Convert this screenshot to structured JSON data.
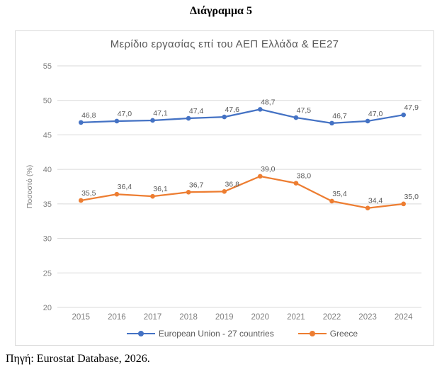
{
  "document": {
    "heading": "Διάγραμμα 5",
    "source": "Πηγή: Eurostat Database, 2026."
  },
  "chart_data": {
    "type": "line",
    "title": "Μερίδιο εργασίας επί του ΑΕΠ Ελλάδα & ΕΕ27",
    "xlabel": "",
    "ylabel": "Ποσοστό (%)",
    "categories": [
      "2015",
      "2016",
      "2017",
      "2018",
      "2019",
      "2020",
      "2021",
      "2022",
      "2023",
      "2024"
    ],
    "series": [
      {
        "name": "European Union - 27 countries",
        "color": "#4472C4",
        "values": [
          46.8,
          47.0,
          47.1,
          47.4,
          47.6,
          48.7,
          47.5,
          46.7,
          47.0,
          47.9
        ]
      },
      {
        "name": "Greece",
        "color": "#ED7D31",
        "values": [
          35.5,
          36.4,
          36.1,
          36.7,
          36.8,
          39.0,
          38.0,
          35.4,
          34.4,
          35.0
        ]
      }
    ],
    "ylim": [
      20,
      55
    ],
    "ytick_step": 5,
    "grid": true,
    "data_labels": true,
    "decimal_separator": ",",
    "legend_position": "bottom",
    "colors": {
      "grid": "#D9D9D9",
      "tick_label": "#7F7F7F",
      "data_label": "#595959",
      "title": "#595959"
    }
  }
}
